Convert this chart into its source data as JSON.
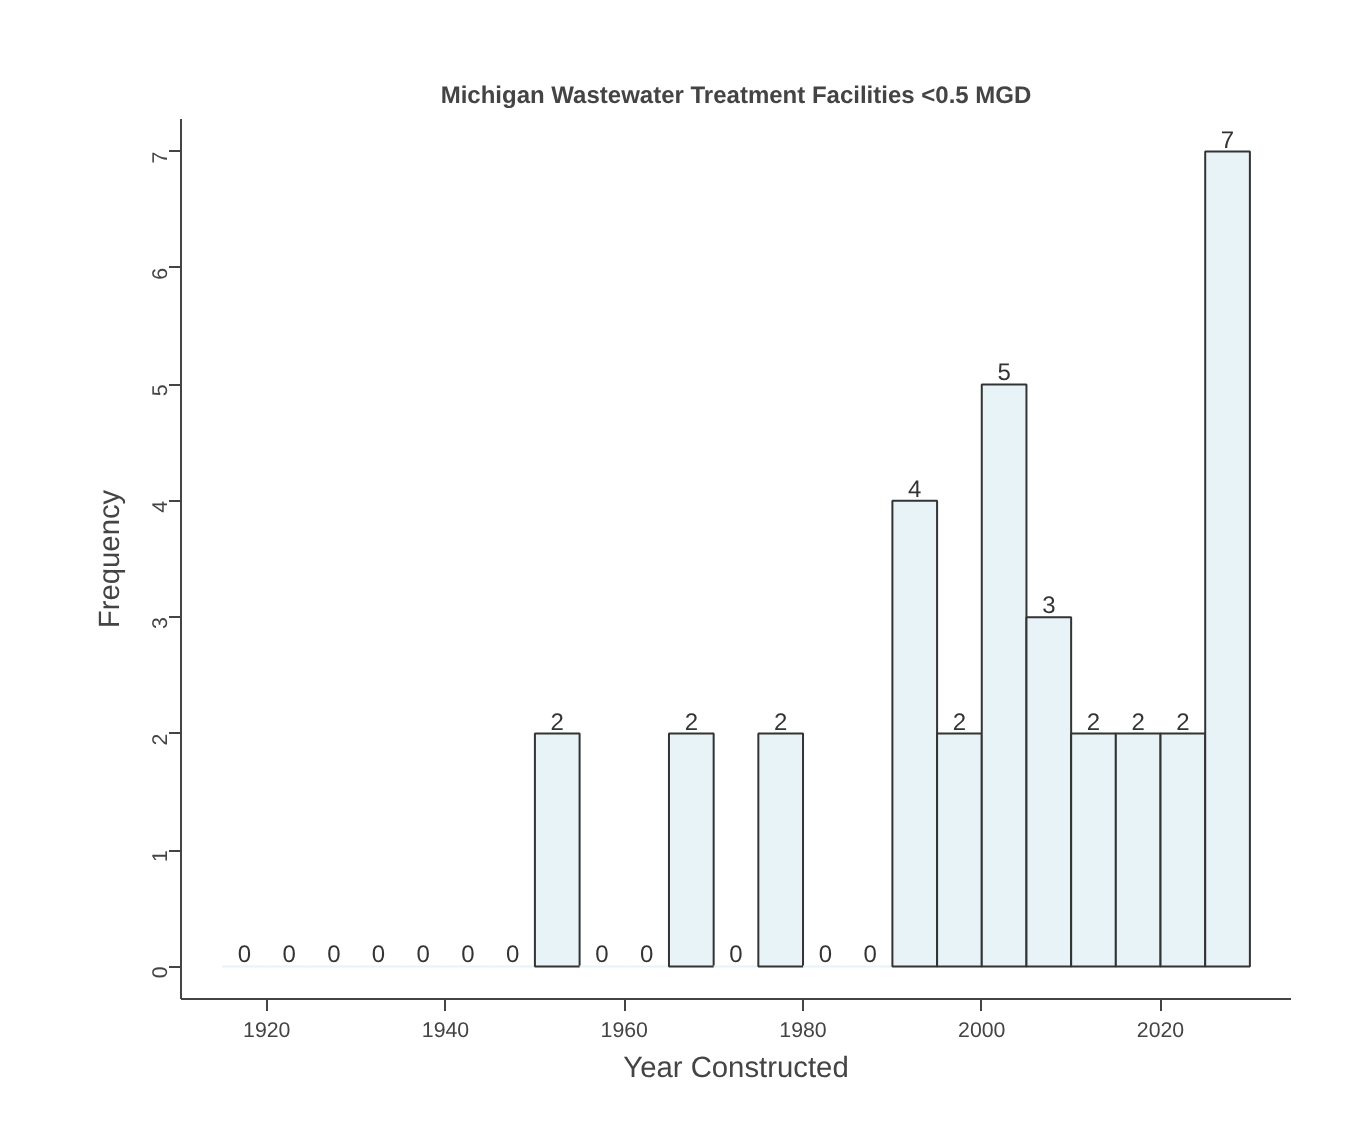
{
  "chart_data": {
    "type": "histogram",
    "title": "Michigan Wastewater Treatment Facilities <0.5 MGD",
    "xlabel": "Year Constructed",
    "ylabel": "Frequency",
    "bins": [
      1915,
      1920,
      1925,
      1930,
      1935,
      1940,
      1945,
      1950,
      1955,
      1960,
      1965,
      1970,
      1975,
      1980,
      1985,
      1990,
      1995,
      2000,
      2005,
      2010,
      2015,
      2020,
      2025,
      2030
    ],
    "values": [
      0,
      0,
      0,
      0,
      0,
      0,
      0,
      2,
      0,
      0,
      2,
      0,
      2,
      0,
      0,
      4,
      2,
      5,
      3,
      2,
      2,
      2,
      7
    ],
    "color": "#e8f3f8",
    "xlim": [
      1910.4,
      2034.6
    ],
    "ylim": [
      -0.28,
      7.28
    ],
    "xticks": [
      1920,
      1940,
      1960,
      1980,
      2000,
      2020
    ],
    "yticks": [
      0,
      1,
      2,
      3,
      4,
      5,
      6,
      7
    ],
    "data_labels": true,
    "grid": false
  }
}
